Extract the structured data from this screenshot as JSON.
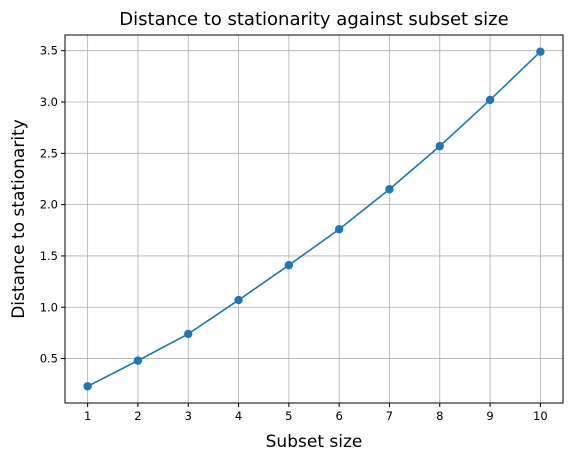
{
  "chart_data": {
    "type": "line",
    "title": "Distance to stationarity against subset size",
    "xlabel": "Subset size",
    "ylabel": "Distance to stationarity",
    "x": [
      1,
      2,
      3,
      4,
      5,
      6,
      7,
      8,
      9,
      10
    ],
    "series": [
      {
        "values": [
          0.23,
          0.48,
          0.74,
          1.07,
          1.41,
          1.76,
          2.15,
          2.57,
          3.02,
          3.49
        ],
        "color": "#1f77b4",
        "marker": "circle"
      }
    ],
    "xticks": [
      "1",
      "2",
      "3",
      "4",
      "5",
      "6",
      "7",
      "8",
      "9",
      "10"
    ],
    "yticks": [
      "0.5",
      "1.0",
      "1.5",
      "2.0",
      "2.5",
      "3.0",
      "3.5"
    ],
    "xlim": [
      0.55,
      10.45
    ],
    "ylim": [
      0.067,
      3.653
    ],
    "grid": true,
    "legend": "none"
  }
}
